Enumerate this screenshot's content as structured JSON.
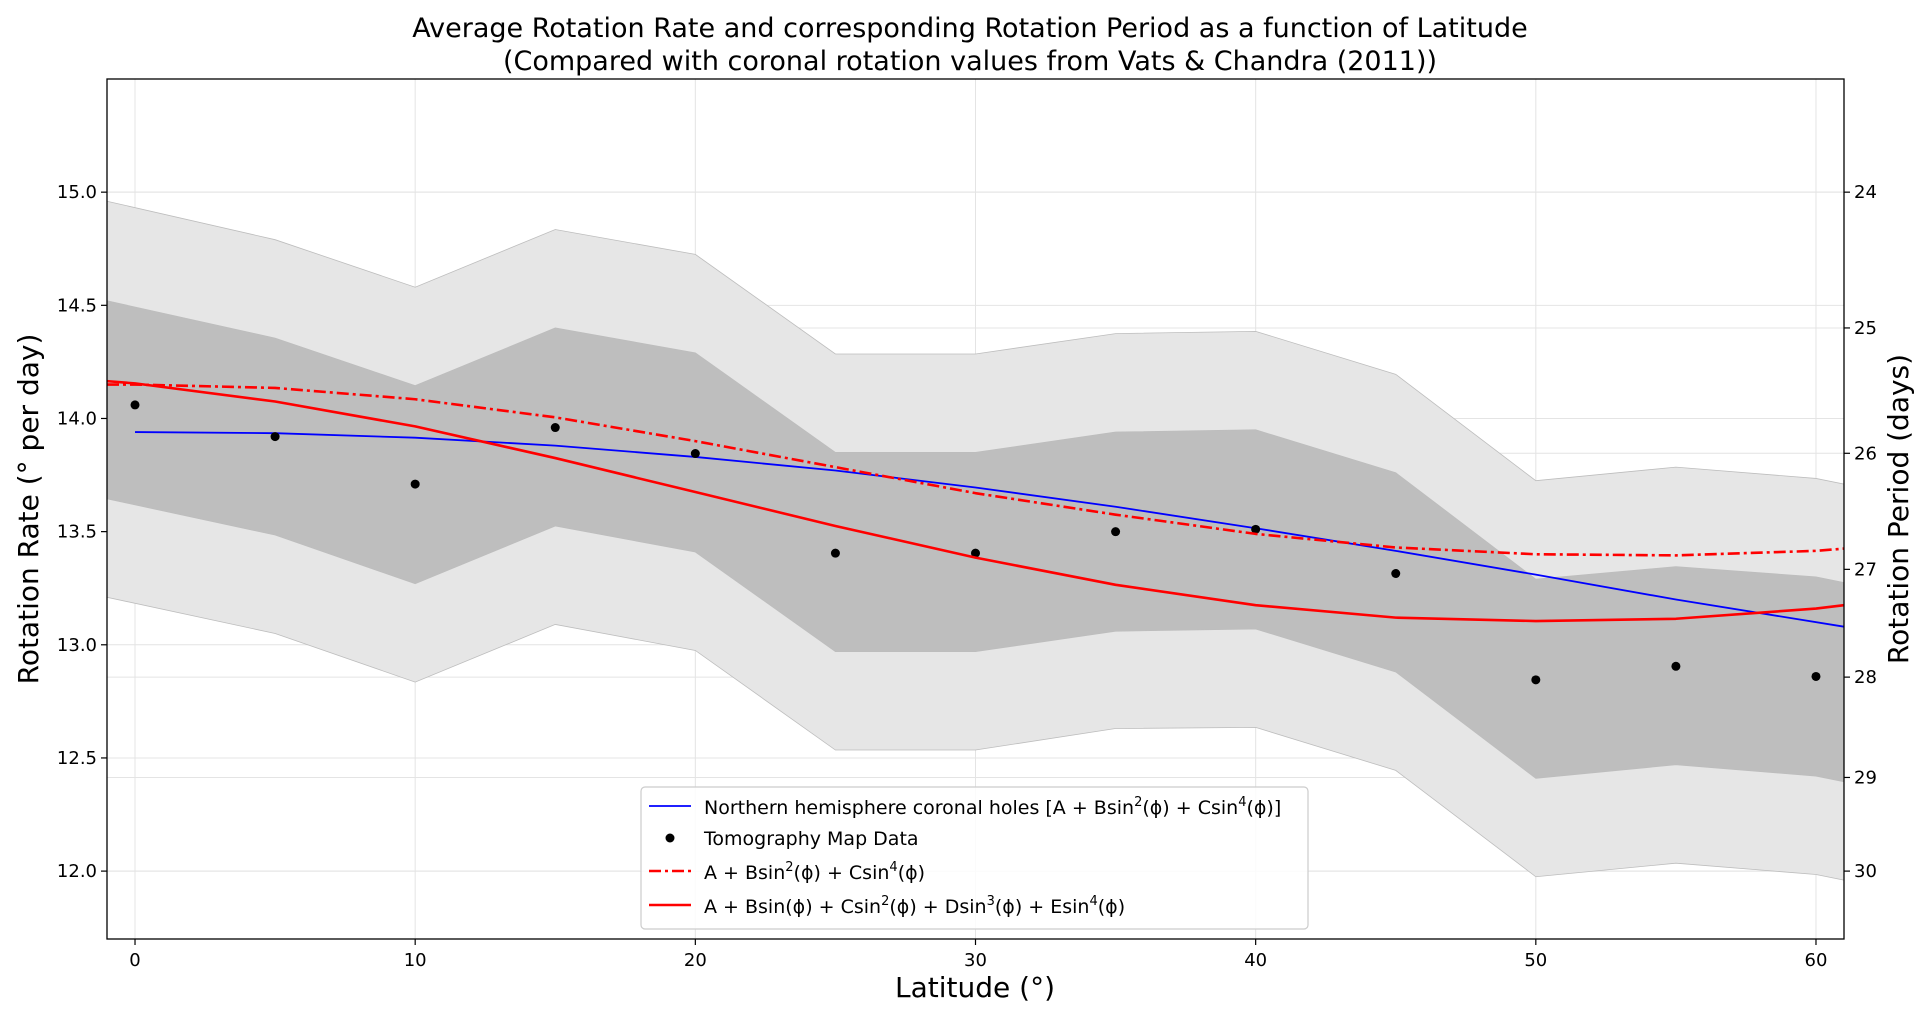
{
  "chart_data": {
    "type": "line",
    "title_line1": "Average Rotation Rate and corresponding Rotation Period as a function of Latitude",
    "title_line2": "(Compared with coronal rotation values from Vats & Chandra (2011))",
    "xlabel": "Latitude (°)",
    "ylabel": "Rotation Rate (° per day)",
    "ylabel_right": "Rotation Period (days)",
    "xlim": [
      -1,
      61
    ],
    "ylim": [
      11.7,
      15.5
    ],
    "xticks": [
      0,
      10,
      20,
      30,
      40,
      50,
      60
    ],
    "yticks": [
      12.0,
      12.5,
      13.0,
      13.5,
      14.0,
      14.5,
      15.0
    ],
    "yticks_right": [
      24,
      25,
      26,
      27,
      28,
      29,
      30
    ],
    "grid": true,
    "legend_position": "bottom-center",
    "latitudes": [
      0,
      5,
      10,
      15,
      20,
      25,
      30,
      35,
      40,
      45,
      50,
      55,
      60
    ],
    "series": [
      {
        "name": "Northern hemisphere coronal holes",
        "style": "line",
        "color": "#0000ff",
        "x": [
          0,
          5,
          10,
          15,
          20,
          25,
          30,
          35,
          40,
          45,
          50,
          55,
          61
        ],
        "values": [
          13.94,
          13.935,
          13.915,
          13.88,
          13.83,
          13.77,
          13.695,
          13.61,
          13.515,
          13.415,
          13.31,
          13.2,
          13.08
        ]
      },
      {
        "name": "Tomography Map Data",
        "style": "points",
        "color": "#000000",
        "x": [
          0,
          5,
          10,
          15,
          20,
          25,
          30,
          35,
          40,
          45,
          50,
          55,
          60
        ],
        "values": [
          14.06,
          13.92,
          13.71,
          13.96,
          13.845,
          13.405,
          13.405,
          13.5,
          13.51,
          13.315,
          12.845,
          12.905,
          12.86
        ]
      },
      {
        "name": "A + Bsin2 + Csin4 fit",
        "style": "dashdot",
        "color": "#ff0000",
        "x": [
          -1,
          0,
          5,
          10,
          15,
          20,
          25,
          30,
          35,
          40,
          45,
          50,
          55,
          60,
          61
        ],
        "values": [
          14.15,
          14.15,
          14.135,
          14.085,
          14.005,
          13.9,
          13.785,
          13.67,
          13.575,
          13.49,
          13.43,
          13.4,
          13.395,
          13.415,
          13.425
        ]
      },
      {
        "name": "A + Bsin + Csin2 + Dsin3 + Esin4 fit",
        "style": "line",
        "color": "#ff0000",
        "x": [
          -1,
          0,
          5,
          10,
          15,
          20,
          25,
          30,
          35,
          40,
          45,
          50,
          55,
          60,
          61
        ],
        "values": [
          14.165,
          14.155,
          14.075,
          13.965,
          13.825,
          13.675,
          13.525,
          13.385,
          13.265,
          13.175,
          13.12,
          13.105,
          13.115,
          13.16,
          13.175
        ]
      }
    ],
    "bands": [
      {
        "name": "outer-band",
        "color": "#e6e6e6",
        "x": [
          -1,
          5,
          10,
          15,
          20,
          25,
          30,
          35,
          40,
          45,
          50,
          55,
          60,
          61
        ],
        "upper": [
          14.96,
          14.79,
          14.58,
          14.835,
          14.725,
          14.285,
          14.285,
          14.375,
          14.385,
          14.195,
          13.725,
          13.785,
          13.735,
          13.71
        ],
        "lower": [
          13.21,
          13.05,
          12.835,
          13.09,
          12.975,
          12.535,
          12.535,
          12.63,
          12.635,
          12.445,
          11.975,
          12.035,
          11.985,
          11.96
        ]
      },
      {
        "name": "inner-band",
        "color": "#bebebe",
        "x": [
          -1,
          5,
          10,
          15,
          20,
          25,
          30,
          35,
          40,
          45,
          50,
          55,
          60,
          61
        ],
        "upper": [
          14.52,
          14.355,
          14.145,
          14.4,
          14.29,
          13.85,
          13.85,
          13.94,
          13.95,
          13.76,
          13.29,
          13.345,
          13.3,
          13.275
        ],
        "lower": [
          13.645,
          13.485,
          13.27,
          13.525,
          13.41,
          12.97,
          12.97,
          13.06,
          13.07,
          12.88,
          12.41,
          12.47,
          12.42,
          12.395
        ]
      }
    ],
    "legend": [
      {
        "label": "Northern hemisphere coronal holes [A + Bsin",
        "sup1": "2",
        "mid": "(ϕ) + Csin",
        "sup2": "4",
        "tail": "(ϕ)]"
      },
      {
        "label": "Tomography Map Data"
      },
      {
        "label": "A + Bsin",
        "sup1": "2",
        "mid": "(ϕ) + Csin",
        "sup2": "4",
        "tail": "(ϕ)"
      },
      {
        "label": "A + Bsin(ϕ) + Csin",
        "sup1": "2",
        "mid": "(ϕ) + Dsin",
        "sup2": "3",
        "tail2a": "(ϕ) + Esin",
        "sup3": "4",
        "tail": "(ϕ)"
      }
    ]
  }
}
